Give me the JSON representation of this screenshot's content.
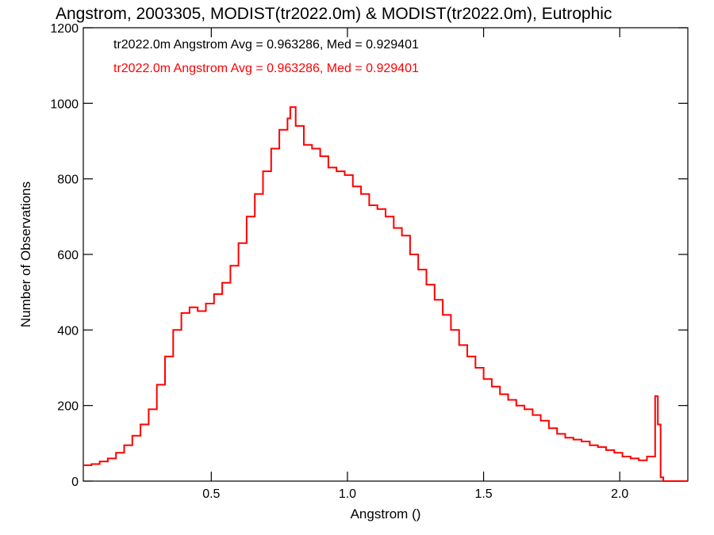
{
  "chart_data": {
    "type": "histogram",
    "title": "Angstrom, 2003305, MODIST(tr2022.0m) & MODIST(tr2022.0m), Eutrophic",
    "xlabel": "Angstrom ()",
    "ylabel": "Number of Observations",
    "xlim": [
      0.03,
      2.25
    ],
    "ylim": [
      0,
      1200
    ],
    "x_ticks": [
      0.5,
      1.0,
      1.5,
      2.0
    ],
    "x_tick_labels": [
      "0.5",
      "1.0",
      "1.5",
      "2.0"
    ],
    "y_ticks": [
      0,
      200,
      400,
      600,
      800,
      1000,
      1200
    ],
    "y_tick_labels": [
      "0",
      "200",
      "400",
      "600",
      "800",
      "1000",
      "1200"
    ],
    "grid": false,
    "legend": [
      {
        "text": "tr2022.0m Angstrom Avg = 0.963286, Med = 0.929401",
        "color": "#000000"
      },
      {
        "text": "tr2022.0m Angstrom Avg = 0.963286, Med = 0.929401",
        "color": "#ff0000"
      }
    ],
    "series": [
      {
        "color": "#ff0000",
        "x": [
          0.03,
          0.06,
          0.09,
          0.12,
          0.15,
          0.18,
          0.21,
          0.24,
          0.27,
          0.3,
          0.33,
          0.36,
          0.39,
          0.42,
          0.45,
          0.48,
          0.51,
          0.54,
          0.57,
          0.6,
          0.63,
          0.66,
          0.69,
          0.72,
          0.75,
          0.78,
          0.79,
          0.81,
          0.84,
          0.87,
          0.9,
          0.93,
          0.96,
          0.99,
          1.02,
          1.05,
          1.08,
          1.11,
          1.14,
          1.17,
          1.2,
          1.23,
          1.26,
          1.29,
          1.32,
          1.35,
          1.38,
          1.41,
          1.44,
          1.47,
          1.5,
          1.53,
          1.56,
          1.59,
          1.62,
          1.65,
          1.68,
          1.71,
          1.74,
          1.77,
          1.8,
          1.83,
          1.86,
          1.89,
          1.92,
          1.95,
          1.98,
          2.01,
          2.04,
          2.07,
          2.1,
          2.13,
          2.14,
          2.15,
          2.16,
          2.18,
          2.21,
          2.25
        ],
        "values": [
          42,
          45,
          52,
          60,
          75,
          95,
          120,
          150,
          190,
          255,
          330,
          400,
          445,
          460,
          450,
          470,
          495,
          525,
          570,
          630,
          700,
          760,
          820,
          880,
          930,
          960,
          990,
          940,
          890,
          880,
          860,
          830,
          820,
          810,
          780,
          760,
          730,
          720,
          700,
          670,
          650,
          600,
          560,
          520,
          480,
          440,
          400,
          360,
          330,
          300,
          270,
          250,
          230,
          215,
          200,
          190,
          175,
          160,
          140,
          125,
          115,
          110,
          105,
          95,
          90,
          82,
          75,
          65,
          60,
          55,
          65,
          225,
          150,
          10,
          0,
          0,
          0,
          0
        ]
      }
    ]
  }
}
